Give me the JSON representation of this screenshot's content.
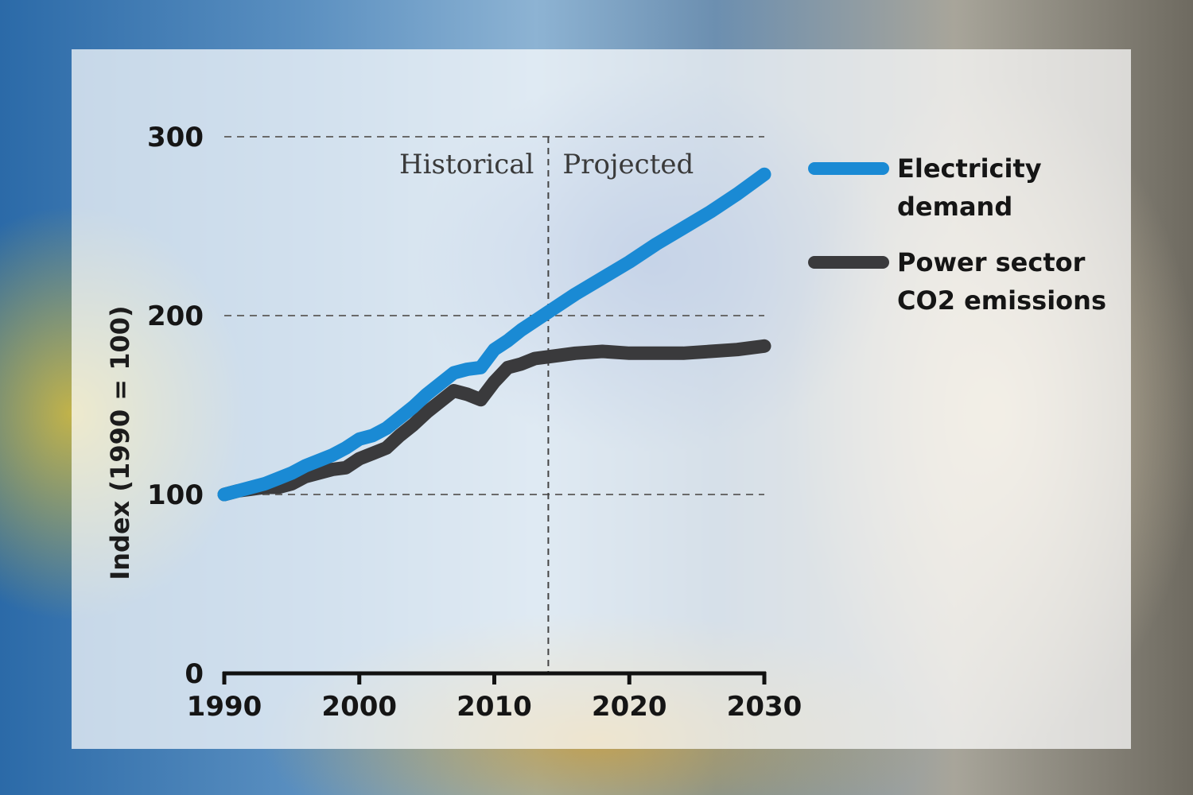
{
  "colors": {
    "electricity": "#1a8ad4",
    "emissions": "#3a3a3c",
    "grid": "#6a6a6a",
    "axis": "#111111"
  },
  "chart_data": {
    "type": "line",
    "ylabel": "Index (1990 = 100)",
    "xlabel": "",
    "xlim": [
      1990,
      2030
    ],
    "ylim": [
      0,
      300
    ],
    "x_ticks": [
      "1990",
      "2000",
      "2010",
      "2020",
      "2030"
    ],
    "y_ticks": [
      "0",
      "100",
      "200",
      "300"
    ],
    "grid": "dashed horizontal at 100, 200, 300",
    "regions": [
      {
        "label": "Historical",
        "x_end": 2014
      },
      {
        "label": "Projected",
        "x_start": 2014
      }
    ],
    "legend_position": "right",
    "series": [
      {
        "name": "Electricity demand",
        "name_lines": [
          "Electricity",
          "demand"
        ],
        "x": [
          1990,
          1991,
          1992,
          1993,
          1994,
          1995,
          1996,
          1997,
          1998,
          1999,
          2000,
          2001,
          2002,
          2003,
          2004,
          2005,
          2006,
          2007,
          2008,
          2009,
          2010,
          2011,
          2012,
          2013,
          2014,
          2016,
          2018,
          2020,
          2022,
          2024,
          2026,
          2028,
          2030
        ],
        "values": [
          100,
          102,
          104,
          106,
          109,
          112,
          116,
          119,
          122,
          126,
          131,
          133,
          137,
          143,
          149,
          156,
          162,
          168,
          170,
          171,
          181,
          186,
          192,
          197,
          202,
          212,
          221,
          230,
          240,
          249,
          258,
          268,
          279
        ]
      },
      {
        "name": "Power sector CO2 emissions",
        "name_lines": [
          "Power sector",
          "CO2 emissions"
        ],
        "x": [
          1990,
          1991,
          1992,
          1993,
          1994,
          1995,
          1996,
          1997,
          1998,
          1999,
          2000,
          2001,
          2002,
          2003,
          2004,
          2005,
          2006,
          2007,
          2008,
          2009,
          2010,
          2011,
          2012,
          2013,
          2014,
          2016,
          2018,
          2020,
          2022,
          2024,
          2026,
          2028,
          2030
        ],
        "values": [
          100,
          102,
          103,
          104,
          104,
          106,
          110,
          112,
          114,
          115,
          120,
          123,
          126,
          133,
          139,
          146,
          152,
          158,
          156,
          153,
          163,
          171,
          173,
          176,
          177,
          179,
          180,
          179,
          179,
          179,
          180,
          181,
          183
        ]
      }
    ]
  }
}
